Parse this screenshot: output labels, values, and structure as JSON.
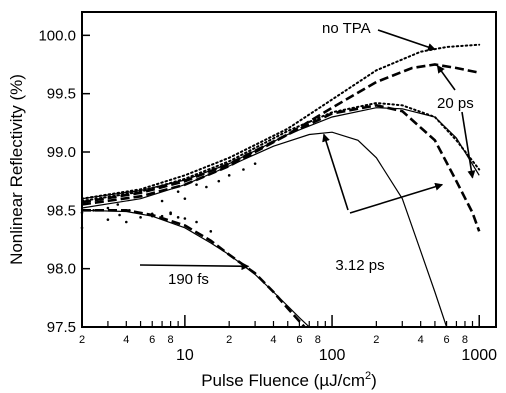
{
  "chart_data": {
    "type": "line",
    "xlabel": "Pulse Fluence (µJ/cm²)",
    "xlabel_main": "Pulse Fluence (µJ/cm",
    "xlabel_sup": "2",
    "xlabel_end": ")",
    "ylabel": "Nonlinear Reflectivity (%)",
    "xscale": "log",
    "xlim": [
      2,
      1300
    ],
    "ylim": [
      97.5,
      100.2
    ],
    "x_major_ticks": [
      10,
      100,
      1000
    ],
    "x_major_labels": [
      "10",
      "100",
      "1000"
    ],
    "x_minor_labeled": [
      2,
      4,
      6,
      8,
      20,
      40,
      60,
      80,
      200,
      400,
      600,
      800
    ],
    "x_minor_labels": [
      "2",
      "4",
      "6",
      "8",
      "2",
      "4",
      "6",
      "8",
      "2",
      "4",
      "6",
      "8"
    ],
    "y_ticks": [
      97.5,
      98.0,
      98.5,
      99.0,
      99.5,
      100.0
    ],
    "y_tick_labels": [
      "97.5",
      "98.0",
      "98.5",
      "99.0",
      "99.5",
      "100.0"
    ],
    "grid": false,
    "series": [
      {
        "name": "no TPA",
        "style": "dotted",
        "x": [
          2,
          5,
          10,
          20,
          50,
          100,
          200,
          400,
          600,
          1000
        ],
        "y": [
          98.6,
          98.68,
          98.8,
          98.95,
          99.2,
          99.45,
          99.7,
          99.86,
          99.9,
          99.92
        ]
      },
      {
        "name": "20 ps",
        "style": "dashed",
        "x": [
          2,
          5,
          10,
          20,
          50,
          100,
          200,
          350,
          500,
          700,
          1000
        ],
        "y": [
          98.57,
          98.65,
          98.75,
          98.9,
          99.15,
          99.38,
          99.6,
          99.72,
          99.75,
          99.72,
          99.68
        ]
      },
      {
        "style": "dashed",
        "x": [
          2,
          5,
          10,
          20,
          50,
          100,
          200,
          300,
          500,
          700,
          900,
          1000
        ],
        "y": [
          98.55,
          98.62,
          98.72,
          98.88,
          99.15,
          99.33,
          99.4,
          99.35,
          99.1,
          98.75,
          98.48,
          98.32
        ]
      },
      {
        "style": "solid",
        "x": [
          2,
          5,
          10,
          20,
          50,
          100,
          200,
          300,
          500,
          700,
          1000
        ],
        "y": [
          98.6,
          98.67,
          98.76,
          98.9,
          99.15,
          99.3,
          99.38,
          99.37,
          99.3,
          99.12,
          98.8
        ]
      },
      {
        "style": "dotted",
        "x": [
          2,
          5,
          10,
          20,
          50,
          100,
          200,
          300,
          500,
          700,
          1000
        ],
        "y": [
          98.58,
          98.66,
          98.77,
          98.92,
          99.18,
          99.34,
          99.42,
          99.4,
          99.3,
          99.1,
          98.85
        ]
      },
      {
        "name": "3.12 ps",
        "style": "solid",
        "x": [
          2,
          5,
          10,
          20,
          40,
          70,
          100,
          150,
          200,
          300,
          400,
          500,
          600
        ],
        "y": [
          98.52,
          98.6,
          98.72,
          98.88,
          99.05,
          99.15,
          99.17,
          99.1,
          98.95,
          98.6,
          98.15,
          97.8,
          97.5
        ]
      },
      {
        "name": "190 fs",
        "style": "solid",
        "x": [
          2,
          4,
          6,
          10,
          15,
          20,
          30,
          40,
          50,
          60,
          70
        ],
        "y": [
          98.5,
          98.49,
          98.45,
          98.35,
          98.22,
          98.12,
          97.95,
          97.8,
          97.68,
          97.58,
          97.5
        ]
      },
      {
        "style": "dashed",
        "x": [
          2,
          4,
          6,
          10,
          15,
          20,
          30,
          40,
          50,
          60,
          65
        ],
        "y": [
          98.5,
          98.5,
          98.46,
          98.37,
          98.24,
          98.12,
          97.96,
          97.8,
          97.66,
          97.55,
          97.5
        ]
      },
      {
        "style": "dots",
        "x": [
          2,
          2.5,
          3,
          3.5,
          4,
          5,
          6,
          7,
          8,
          9,
          10,
          12,
          14,
          17,
          20,
          25,
          30
        ],
        "y": [
          98.35,
          98.6,
          98.42,
          98.55,
          98.4,
          98.62,
          98.45,
          98.58,
          98.48,
          98.66,
          98.6,
          98.72,
          98.7,
          98.75,
          98.8,
          98.85,
          98.9
        ]
      },
      {
        "style": "dots",
        "x": [
          2,
          2.4,
          3,
          3.6,
          4.2,
          5,
          6,
          7,
          8,
          9,
          10,
          12,
          15
        ],
        "y": [
          98.48,
          98.5,
          98.52,
          98.46,
          98.5,
          98.44,
          98.47,
          98.45,
          98.47,
          98.44,
          98.43,
          98.4,
          98.32
        ]
      }
    ],
    "annotations": [
      {
        "text": "no TPA"
      },
      {
        "text": "20 ps"
      },
      {
        "text": "3.12 ps"
      },
      {
        "text": "190 fs"
      }
    ]
  }
}
